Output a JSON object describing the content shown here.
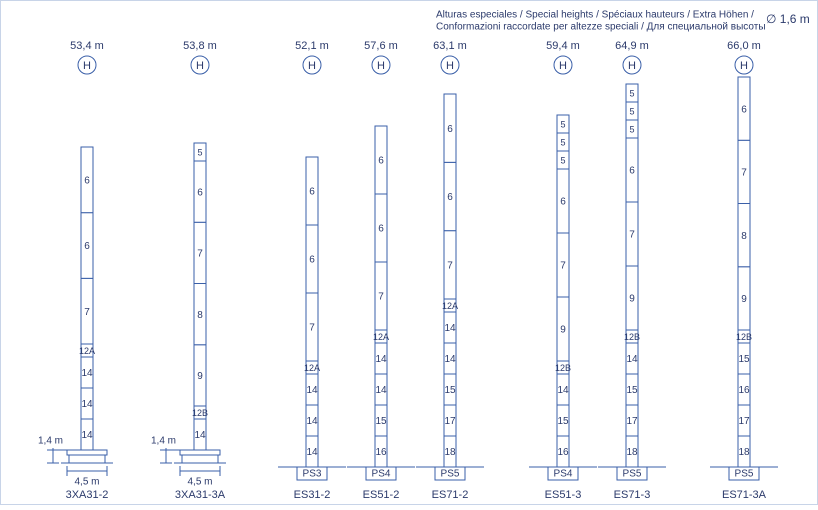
{
  "header": {
    "line1": "Alturas especiales / Special heights / Spéciaux hauteurs / Extra Höhen /",
    "line2": "Conformazioni raccordate per altezze speciali / Для специальной высоты",
    "diameter": "∅ 1,6 m"
  },
  "columns": [
    {
      "height": "53,4 m",
      "marker": "H",
      "segments": [
        "14",
        "14",
        "14",
        "12A",
        "7",
        "6",
        "6"
      ],
      "dimensions": {
        "vertical": "1,4 m",
        "horizontal": "4,5 m"
      },
      "name": "3XA31-2"
    },
    {
      "height": "53,8 m",
      "marker": "H",
      "segments": [
        "14",
        "12B",
        "9",
        "8",
        "7",
        "6",
        "5"
      ],
      "dimensions": {
        "vertical": "1,4 m",
        "horizontal": "4,5 m"
      },
      "name": "3XA31-3A"
    },
    {
      "height": "52,1 m",
      "marker": "H",
      "segments": [
        "14",
        "14",
        "14",
        "12A",
        "7",
        "6",
        "6"
      ],
      "base": "PS3",
      "name": "ES31-2"
    },
    {
      "height": "57,6 m",
      "marker": "H",
      "segments": [
        "16",
        "15",
        "14",
        "14",
        "12A",
        "7",
        "6",
        "6"
      ],
      "base": "PS4",
      "name": "ES51-2"
    },
    {
      "height": "63,1 m",
      "marker": "H",
      "segments": [
        "18",
        "17",
        "15",
        "14",
        "14",
        "12A",
        "7",
        "6",
        "6"
      ],
      "base": "PS5",
      "name": "ES71-2"
    },
    {
      "height": "59,4 m",
      "marker": "H",
      "segments": [
        "16",
        "15",
        "14",
        "12B",
        "9",
        "7",
        "6",
        "5",
        "5",
        "5"
      ],
      "base": "PS4",
      "name": "ES51-3"
    },
    {
      "height": "64,9 m",
      "marker": "H",
      "segments": [
        "18",
        "17",
        "15",
        "14",
        "12B",
        "9",
        "7",
        "6",
        "5",
        "5",
        "5"
      ],
      "base": "PS5",
      "name": "ES71-3"
    },
    {
      "height": "66,0 m",
      "marker": "H",
      "segments": [
        "18",
        "17",
        "16",
        "15",
        "12B",
        "9",
        "8",
        "7",
        "6"
      ],
      "base": "PS5",
      "name": "ES71-3A"
    }
  ]
}
